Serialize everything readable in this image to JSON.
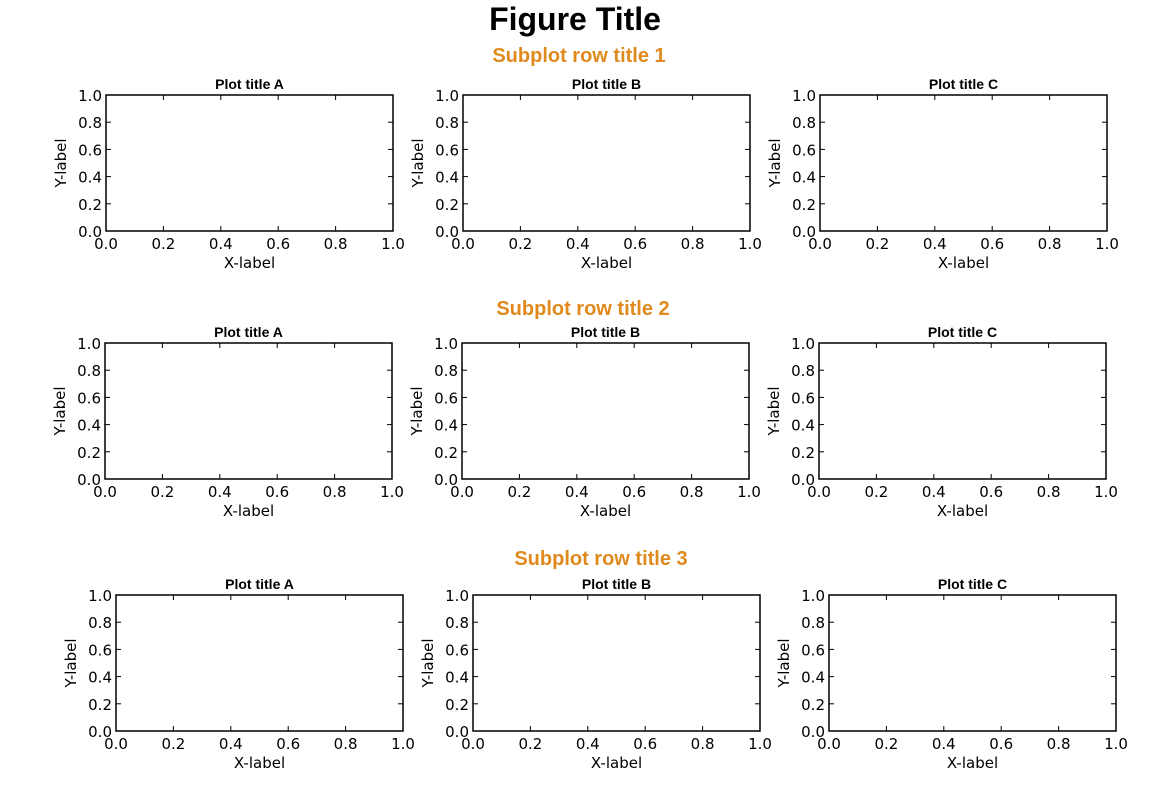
{
  "figure": {
    "title": "Figure Title",
    "title_color": "#000000",
    "row_title_color": "#e08a1e",
    "axes_color": "#000000",
    "background": "#ffffff"
  },
  "rows": [
    {
      "title": "Subplot row title 1"
    },
    {
      "title": "Subplot row title 2"
    },
    {
      "title": "Subplot row title 3"
    }
  ],
  "chart_data": [
    {
      "type": "line",
      "row": 1,
      "title": "Plot title A",
      "xlabel": "X-label",
      "ylabel": "Y-label",
      "xlim": [
        0,
        1
      ],
      "ylim": [
        0,
        1
      ],
      "xticks": [
        "0.0",
        "0.2",
        "0.4",
        "0.6",
        "0.8",
        "1.0"
      ],
      "yticks": [
        "0.0",
        "0.2",
        "0.4",
        "0.6",
        "0.8",
        "1.0"
      ],
      "series": [],
      "grid": false
    },
    {
      "type": "line",
      "row": 1,
      "title": "Plot title B",
      "xlabel": "X-label",
      "ylabel": "Y-label",
      "xlim": [
        0,
        1
      ],
      "ylim": [
        0,
        1
      ],
      "xticks": [
        "0.0",
        "0.2",
        "0.4",
        "0.6",
        "0.8",
        "1.0"
      ],
      "yticks": [
        "0.0",
        "0.2",
        "0.4",
        "0.6",
        "0.8",
        "1.0"
      ],
      "series": [],
      "grid": false
    },
    {
      "type": "line",
      "row": 1,
      "title": "Plot title C",
      "xlabel": "X-label",
      "ylabel": "Y-label",
      "xlim": [
        0,
        1
      ],
      "ylim": [
        0,
        1
      ],
      "xticks": [
        "0.0",
        "0.2",
        "0.4",
        "0.6",
        "0.8",
        "1.0"
      ],
      "yticks": [
        "0.0",
        "0.2",
        "0.4",
        "0.6",
        "0.8",
        "1.0"
      ],
      "series": [],
      "grid": false
    },
    {
      "type": "line",
      "row": 2,
      "title": "Plot title A",
      "xlabel": "X-label",
      "ylabel": "Y-label",
      "xlim": [
        0,
        1
      ],
      "ylim": [
        0,
        1
      ],
      "xticks": [
        "0.0",
        "0.2",
        "0.4",
        "0.6",
        "0.8",
        "1.0"
      ],
      "yticks": [
        "0.0",
        "0.2",
        "0.4",
        "0.6",
        "0.8",
        "1.0"
      ],
      "series": [],
      "grid": false
    },
    {
      "type": "line",
      "row": 2,
      "title": "Plot title B",
      "xlabel": "X-label",
      "ylabel": "Y-label",
      "xlim": [
        0,
        1
      ],
      "ylim": [
        0,
        1
      ],
      "xticks": [
        "0.0",
        "0.2",
        "0.4",
        "0.6",
        "0.8",
        "1.0"
      ],
      "yticks": [
        "0.0",
        "0.2",
        "0.4",
        "0.6",
        "0.8",
        "1.0"
      ],
      "series": [],
      "grid": false
    },
    {
      "type": "line",
      "row": 2,
      "title": "Plot title C",
      "xlabel": "X-label",
      "ylabel": "Y-label",
      "xlim": [
        0,
        1
      ],
      "ylim": [
        0,
        1
      ],
      "xticks": [
        "0.0",
        "0.2",
        "0.4",
        "0.6",
        "0.8",
        "1.0"
      ],
      "yticks": [
        "0.0",
        "0.2",
        "0.4",
        "0.6",
        "0.8",
        "1.0"
      ],
      "series": [],
      "grid": false
    },
    {
      "type": "line",
      "row": 3,
      "title": "Plot title A",
      "xlabel": "X-label",
      "ylabel": "Y-label",
      "xlim": [
        0,
        1
      ],
      "ylim": [
        0,
        1
      ],
      "xticks": [
        "0.0",
        "0.2",
        "0.4",
        "0.6",
        "0.8",
        "1.0"
      ],
      "yticks": [
        "0.0",
        "0.2",
        "0.4",
        "0.6",
        "0.8",
        "1.0"
      ],
      "series": [],
      "grid": false
    },
    {
      "type": "line",
      "row": 3,
      "title": "Plot title B",
      "xlabel": "X-label",
      "ylabel": "Y-label",
      "xlim": [
        0,
        1
      ],
      "ylim": [
        0,
        1
      ],
      "xticks": [
        "0.0",
        "0.2",
        "0.4",
        "0.6",
        "0.8",
        "1.0"
      ],
      "yticks": [
        "0.0",
        "0.2",
        "0.4",
        "0.6",
        "0.8",
        "1.0"
      ],
      "series": [],
      "grid": false
    },
    {
      "type": "line",
      "row": 3,
      "title": "Plot title C",
      "xlabel": "X-label",
      "ylabel": "Y-label",
      "xlim": [
        0,
        1
      ],
      "ylim": [
        0,
        1
      ],
      "xticks": [
        "0.0",
        "0.2",
        "0.4",
        "0.6",
        "0.8",
        "1.0"
      ],
      "yticks": [
        "0.0",
        "0.2",
        "0.4",
        "0.6",
        "0.8",
        "1.0"
      ],
      "series": [],
      "grid": false
    }
  ]
}
